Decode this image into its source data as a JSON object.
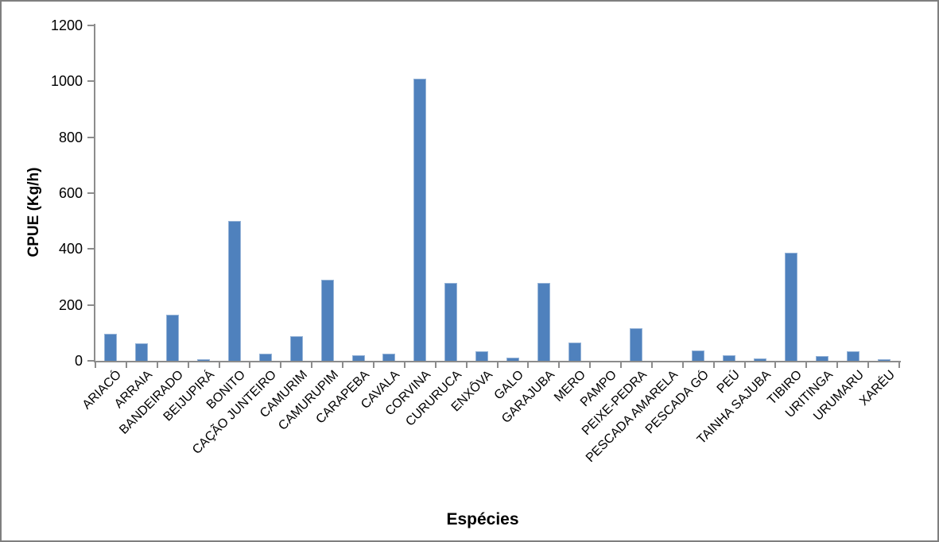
{
  "chart_data": {
    "type": "bar",
    "title": "",
    "xlabel": "Espécies",
    "ylabel": "CPUE (Kg/h)",
    "ylim": [
      0,
      1200
    ],
    "yticks": [
      0,
      200,
      400,
      600,
      800,
      1000,
      1200
    ],
    "grid": "off",
    "legend": "none",
    "bar_color": "#4f81bd",
    "bar_border_color": "#95b3d7",
    "axis_color": "#8c8c8c",
    "frame_border_color": "#7f7f7f",
    "categories": [
      "ARIACÓ",
      "ARRAIA",
      "BANDEIRADO",
      "BEIJUPIRÁ",
      "BONITO",
      "CAÇÃO JUNTEIRO",
      "CAMURIM",
      "CAMURUPIM",
      "CARAPEBA",
      "CAVALA",
      "CORVINA",
      "CURURUCA",
      "ENXÔVA",
      "GALO",
      "GARAJUBA",
      "MERO",
      "PAMPO",
      "PEIXE-PEDRA",
      "PESCADA AMARELA",
      "PESCADA GÓ",
      "PEÚ",
      "TAINHA SAJUBA",
      "TIBIRO",
      "URITINGA",
      "URUMARU",
      "XARÉU"
    ],
    "values": [
      98,
      63,
      164,
      7,
      500,
      25,
      88,
      291,
      20,
      26,
      1010,
      279,
      33,
      10,
      280,
      64,
      0,
      116,
      0,
      38,
      20,
      8,
      386,
      18,
      35,
      5
    ]
  }
}
